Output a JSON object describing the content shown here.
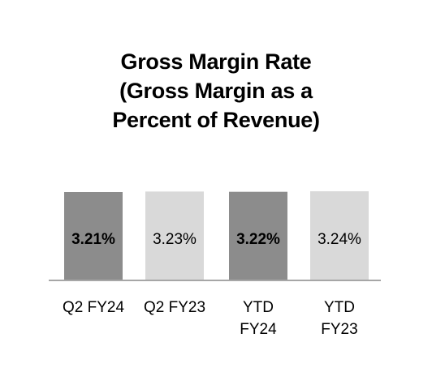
{
  "chart_data": {
    "type": "bar",
    "title_lines": [
      "Gross Margin Rate",
      "(Gross Margin as a",
      "Percent of Revenue)"
    ],
    "categories": [
      [
        "Q2 FY24"
      ],
      [
        "Q2 FY23"
      ],
      [
        "YTD",
        "FY24"
      ],
      [
        "YTD",
        "FY23"
      ]
    ],
    "values": [
      3.21,
      3.23,
      3.22,
      3.24
    ],
    "data_labels": [
      "3.21%",
      "3.23%",
      "3.22%",
      "3.24%"
    ],
    "bar_colors": [
      "#8c8c8c",
      "#d9d9d9",
      "#8c8c8c",
      "#d9d9d9"
    ],
    "label_bold": [
      true,
      false,
      true,
      false
    ],
    "axis_color": "#a6a6a6",
    "xlabel": "",
    "ylabel": "",
    "grid": false,
    "legend": "none"
  }
}
